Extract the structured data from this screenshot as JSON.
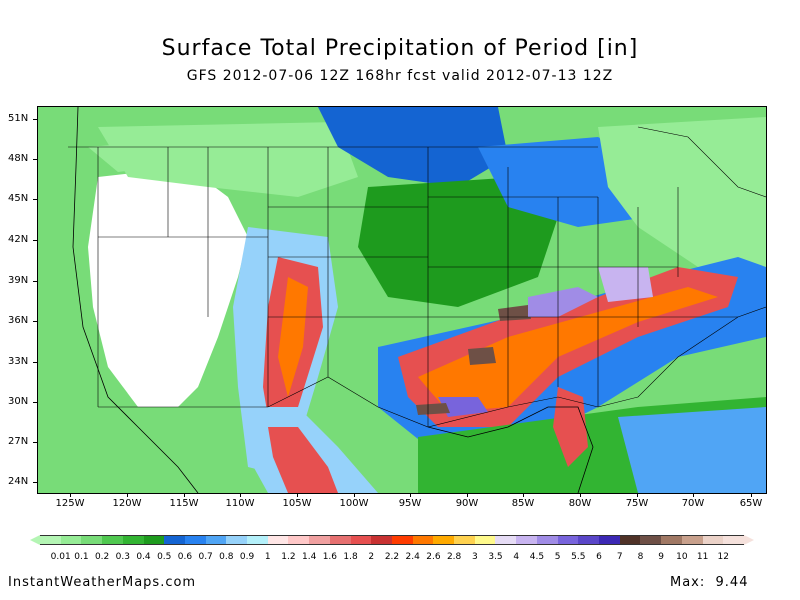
{
  "title": "Surface Total Precipitation of Period [in]",
  "subtitle": "GFS 2012-07-06 12Z 168hr fcst valid 2012-07-13 12Z",
  "latitude_labels": [
    "51N",
    "48N",
    "45N",
    "42N",
    "39N",
    "36N",
    "33N",
    "30N",
    "27N",
    "24N"
  ],
  "longitude_labels": [
    "125W",
    "120W",
    "115W",
    "110W",
    "105W",
    "100W",
    "95W",
    "90W",
    "85W",
    "80W",
    "75W",
    "70W",
    "65W"
  ],
  "colorbar": {
    "labels": [
      "0.01",
      "0.1",
      "0.2",
      "0.3",
      "0.4",
      "0.5",
      "0.6",
      "0.7",
      "0.8",
      "0.9",
      "1",
      "1.2",
      "1.4",
      "1.6",
      "1.8",
      "2",
      "2.2",
      "2.4",
      "2.6",
      "2.8",
      "3",
      "3.5",
      "4",
      "4.5",
      "5",
      "5.5",
      "6",
      "7",
      "8",
      "9",
      "10",
      "11",
      "12"
    ],
    "colors": [
      "#b4f5b4",
      "#96ec96",
      "#78dc78",
      "#50c850",
      "#32b432",
      "#1e9b1e",
      "#1464d2",
      "#2882f0",
      "#50a5f5",
      "#96d2fa",
      "#b4f0fa",
      "#ffe6e6",
      "#ffc8c8",
      "#f0a0a0",
      "#e67070",
      "#e65050",
      "#c83232",
      "#ff3c00",
      "#ff7800",
      "#ffaa00",
      "#ffd250",
      "#fffa8c",
      "#e6dcf5",
      "#c8b4f0",
      "#a08ce6",
      "#7864dc",
      "#5a46c8",
      "#3c28b4",
      "#503228",
      "#6e5046",
      "#a07864",
      "#c8a08c",
      "#ebd2c8",
      "#f5e1dc"
    ]
  },
  "credit": "InstantWeatherMaps.com",
  "max": {
    "label": "Max:",
    "value": "9.44"
  }
}
